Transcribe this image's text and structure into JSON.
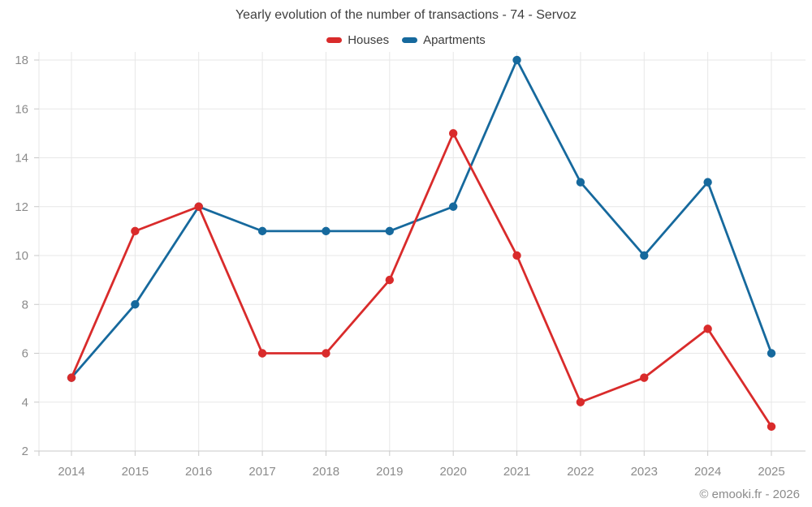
{
  "page": {
    "footer": "© emooki.fr - 2026"
  },
  "colors": {
    "houses": "#d92b2b",
    "apartments": "#16699d",
    "grid": "#e7e7e7",
    "axis": "#c9c9c9",
    "tick_label": "#8b8b8b"
  },
  "chart_data": {
    "type": "line",
    "title": "Yearly evolution of the number of transactions - 74 - Servoz",
    "x": [
      "2014",
      "2015",
      "2016",
      "2017",
      "2018",
      "2019",
      "2020",
      "2021",
      "2022",
      "2023",
      "2024",
      "2025"
    ],
    "series": [
      {
        "name": "Houses",
        "color": "#d92b2b",
        "values": [
          5,
          11,
          12,
          6,
          6,
          9,
          15,
          10,
          4,
          5,
          7,
          3
        ]
      },
      {
        "name": "Apartments",
        "color": "#16699d",
        "values": [
          5,
          8,
          12,
          11,
          11,
          11,
          12,
          18,
          13,
          10,
          13,
          6
        ]
      }
    ],
    "xlabel": "",
    "ylabel": "",
    "ylim": [
      2,
      18
    ],
    "yticks": [
      2,
      4,
      6,
      8,
      10,
      12,
      14,
      16,
      18
    ],
    "grid": "on",
    "legend_position": "top",
    "marker": "circle"
  }
}
